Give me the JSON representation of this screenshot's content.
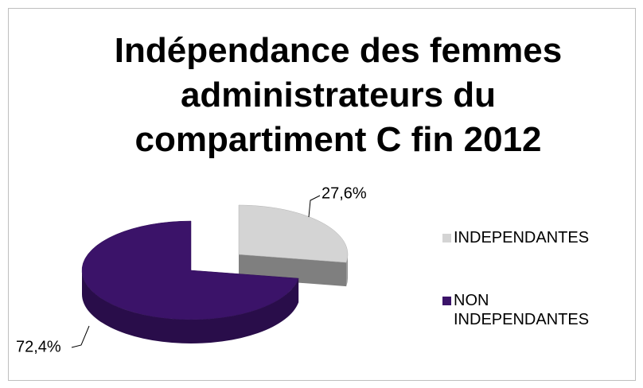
{
  "chart_data": {
    "type": "pie3d",
    "title": "Indépendance des femmes administrateurs du compartiment C fin 2012",
    "categories": [
      "INDEPENDANTES",
      "NON INDEPENDANTES"
    ],
    "values": [
      27.6,
      72.4
    ],
    "value_labels": [
      "27,6%",
      "72,4%"
    ],
    "colors": [
      "#d4d4d4",
      "#3b1369"
    ],
    "legend": "right"
  }
}
